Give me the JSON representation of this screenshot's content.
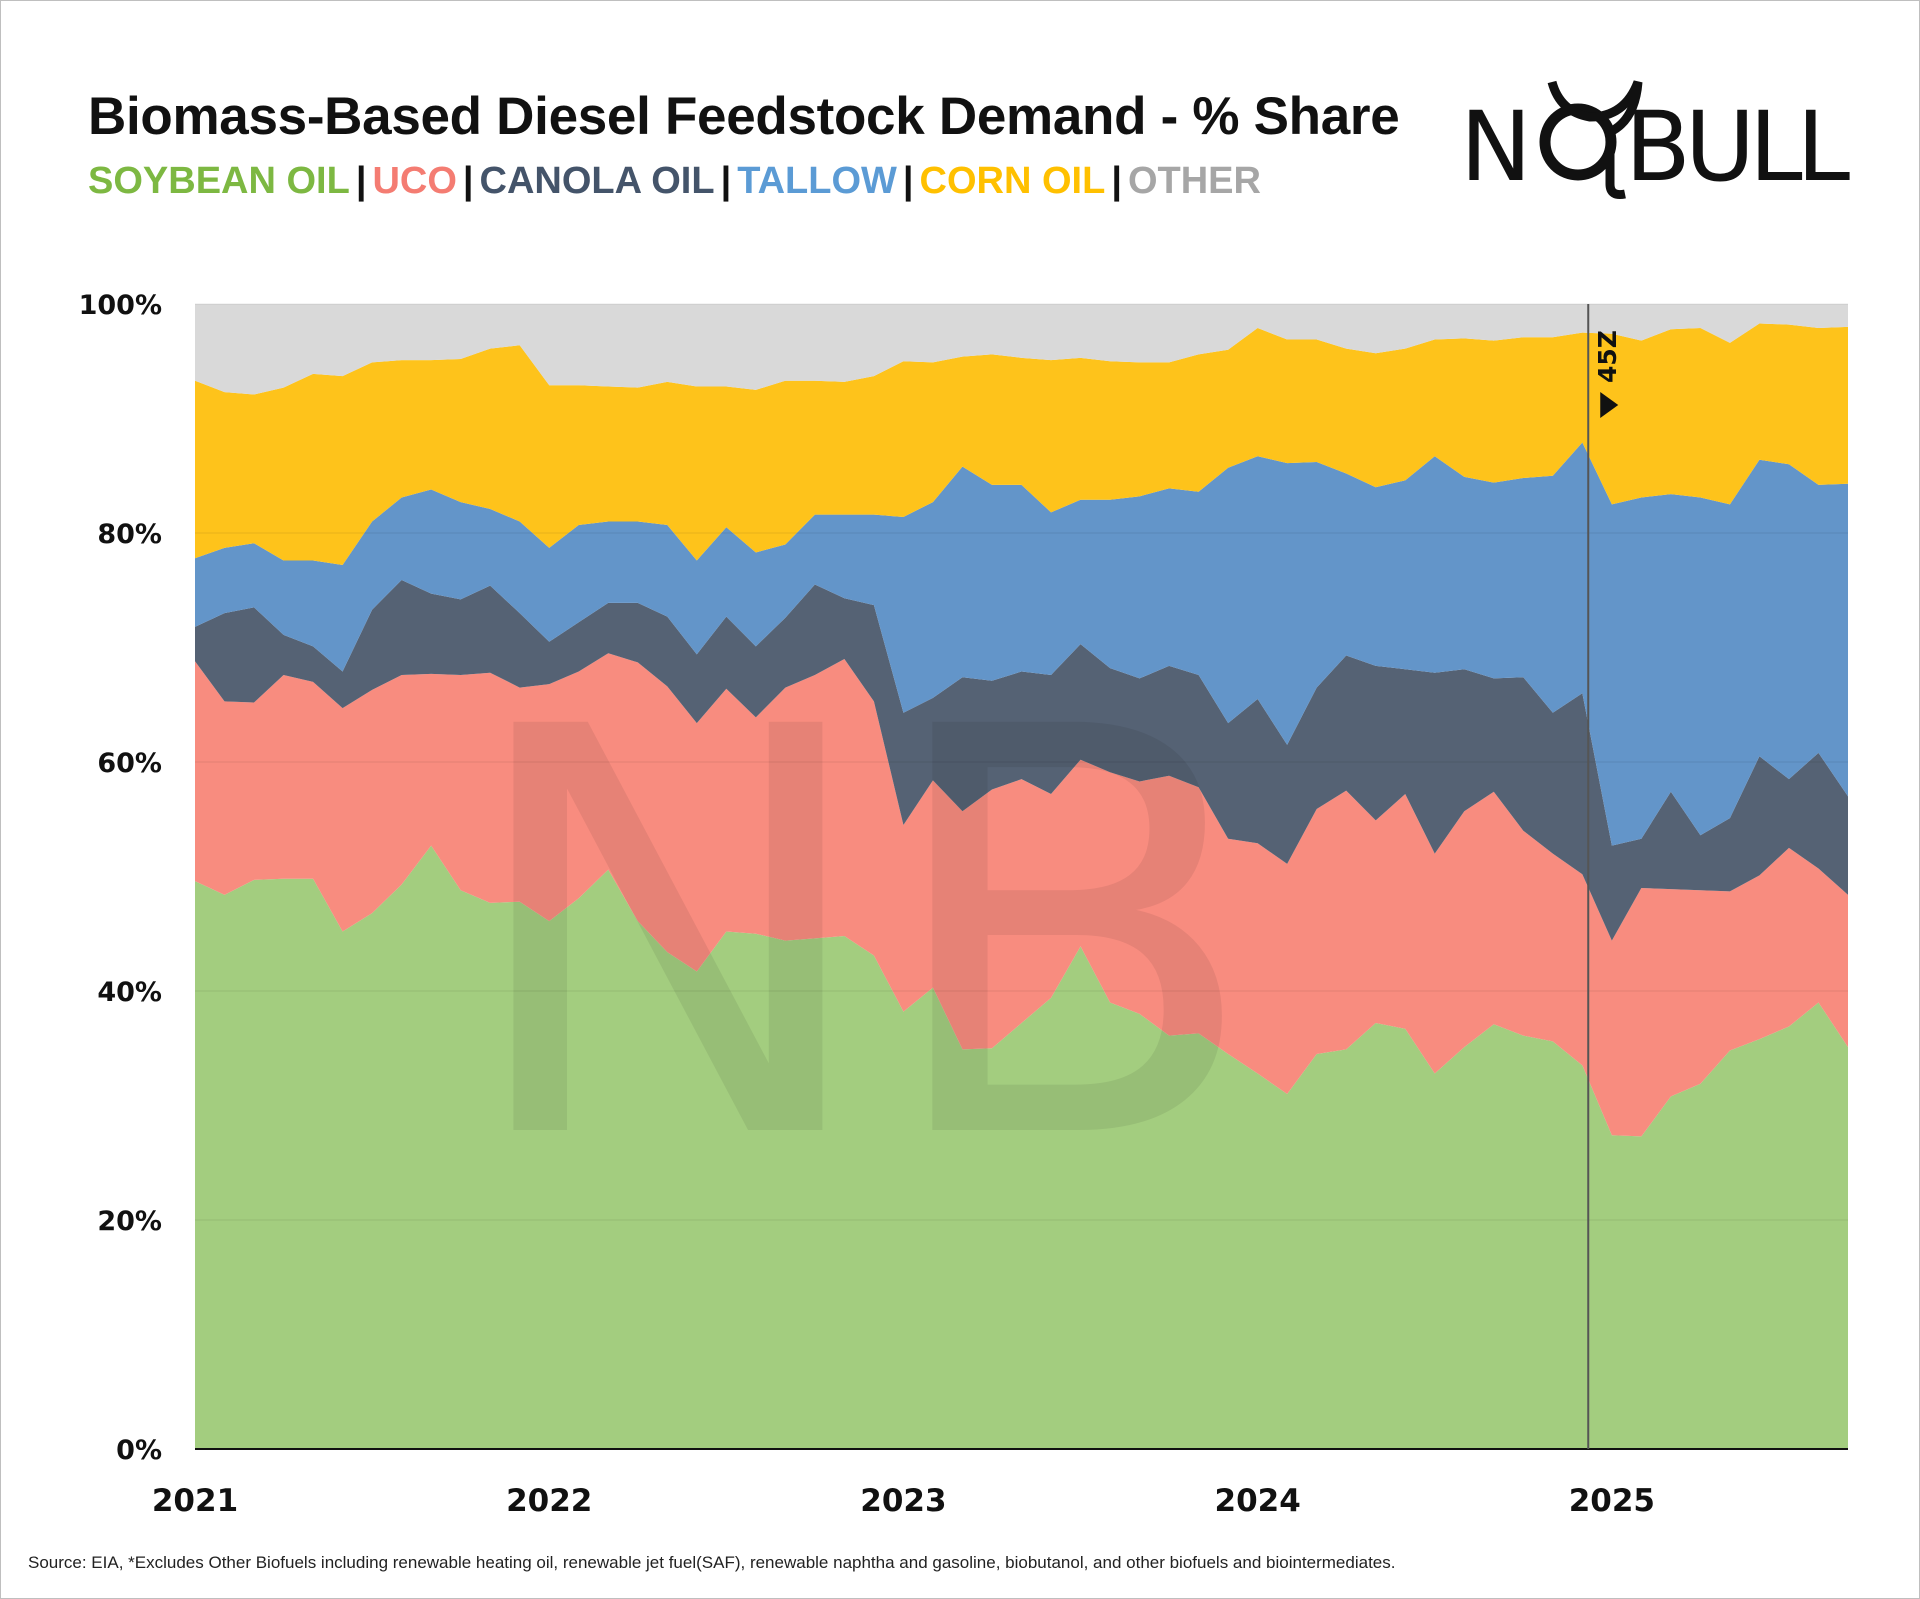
{
  "title": "Biomass-Based Diesel Feedstock Demand - % Share",
  "legend_separator": "|",
  "legend": [
    {
      "label": "SOYBEAN OIL",
      "color": "#7db842"
    },
    {
      "label": "UCO",
      "color": "#f47c72"
    },
    {
      "label": "CANOLA OIL",
      "color": "#44546a"
    },
    {
      "label": "TALLOW",
      "color": "#5b9bd5"
    },
    {
      "label": "CORN OIL",
      "color": "#ffc000"
    },
    {
      "label": "OTHER",
      "color": "#a6a6a6"
    }
  ],
  "logo": {
    "text": "NO BULL",
    "watermark": "NB"
  },
  "source": "Source: EIA, *Excludes Other Biofuels including renewable heating oil, renewable jet fuel(SAF), renewable naphtha and gasoline, biobutanol, and other biofuels and biointermediates.",
  "chart_data": {
    "type": "area",
    "stacked": true,
    "x_start": "2021-01",
    "x_end": "2025-09",
    "frequency": "monthly",
    "ylim": [
      0,
      100
    ],
    "y_ticks": [
      "0%",
      "20%",
      "40%",
      "60%",
      "80%",
      "100%"
    ],
    "x_ticks": [
      "2021",
      "2022",
      "2023",
      "2024",
      "2025"
    ],
    "grid": "horizontal",
    "annotation": {
      "label": "45Z",
      "date": "2025-01"
    },
    "series": [
      {
        "name": "SOYBEAN OIL",
        "fill": "#a3cd7f",
        "values": [
          49.6,
          48.4,
          49.7,
          49.8,
          49.8,
          45.2,
          46.8,
          49.3,
          52.7,
          48.8,
          47.7,
          47.8,
          46.1,
          48.1,
          50.6,
          46.1,
          43.4,
          41.7,
          45.2,
          45.0,
          44.4,
          44.6,
          44.8,
          43.1,
          38.2,
          40.3,
          34.9,
          35.0,
          37.2,
          39.4,
          43.9,
          39.0,
          38.0,
          36.1,
          36.3,
          34.5,
          32.8,
          31.0,
          34.5,
          34.9,
          37.2,
          36.7,
          32.8,
          35.1,
          37.1,
          36.1,
          35.6,
          33.5,
          27.4,
          27.3,
          30.8,
          31.9,
          34.8,
          35.8,
          36.9,
          39.0,
          35.1
        ]
      },
      {
        "name": "UCO",
        "fill": "#f88c7f",
        "values": [
          19.2,
          16.9,
          15.5,
          17.8,
          17.2,
          19.5,
          19.5,
          18.3,
          15.0,
          18.8,
          20.1,
          18.7,
          20.7,
          19.8,
          18.9,
          22.6,
          23.2,
          21.7,
          21.2,
          18.9,
          22.1,
          23.0,
          24.2,
          22.2,
          16.3,
          18.1,
          20.8,
          22.6,
          21.3,
          17.8,
          16.3,
          20.1,
          20.3,
          22.7,
          21.5,
          18.8,
          20.1,
          20.1,
          21.4,
          22.6,
          17.7,
          20.5,
          19.2,
          20.6,
          20.3,
          17.9,
          16.4,
          16.7,
          17.0,
          21.7,
          18.1,
          16.9,
          13.9,
          14.3,
          15.6,
          11.7,
          13.3
        ]
      },
      {
        "name": "CANOLA OIL",
        "fill": "#556274",
        "values": [
          3.0,
          7.7,
          8.3,
          3.5,
          3.1,
          3.2,
          7.0,
          8.3,
          7.0,
          6.6,
          7.6,
          6.5,
          3.7,
          4.3,
          4.4,
          5.2,
          6.1,
          6.0,
          6.3,
          6.2,
          6.1,
          7.9,
          5.3,
          8.4,
          9.8,
          7.2,
          11.7,
          9.5,
          9.4,
          10.4,
          10.1,
          9.1,
          9.0,
          9.6,
          9.8,
          10.1,
          12.6,
          10.4,
          10.6,
          11.8,
          13.5,
          10.9,
          15.8,
          12.4,
          9.9,
          13.4,
          12.3,
          15.8,
          8.3,
          4.3,
          8.5,
          4.8,
          6.4,
          10.4,
          6.0,
          10.1,
          8.6
        ]
      },
      {
        "name": "TALLOW",
        "fill": "#6395c9",
        "values": [
          6.0,
          5.7,
          5.6,
          6.5,
          7.5,
          9.3,
          7.7,
          7.2,
          9.1,
          8.5,
          6.7,
          8.0,
          8.2,
          8.5,
          7.1,
          7.1,
          8.0,
          8.2,
          7.8,
          8.2,
          6.4,
          6.1,
          7.3,
          7.9,
          17.1,
          17.1,
          18.4,
          17.1,
          16.3,
          14.2,
          12.6,
          14.7,
          15.9,
          15.5,
          16.0,
          22.3,
          21.2,
          24.6,
          19.7,
          15.9,
          15.6,
          16.5,
          18.9,
          16.8,
          17.1,
          17.4,
          20.7,
          21.9,
          29.8,
          29.8,
          26.0,
          29.5,
          27.4,
          25.9,
          27.5,
          23.4,
          27.3
        ]
      },
      {
        "name": "CORN OIL",
        "fill": "#fec31b",
        "values": [
          15.5,
          13.6,
          13.0,
          15.1,
          16.3,
          16.5,
          13.9,
          12.0,
          11.3,
          12.5,
          14.0,
          15.4,
          14.2,
          12.2,
          11.8,
          11.7,
          12.5,
          15.2,
          12.3,
          14.2,
          14.3,
          11.7,
          11.6,
          12.1,
          13.6,
          12.2,
          9.6,
          11.4,
          11.1,
          13.3,
          12.4,
          12.1,
          11.7,
          11.0,
          12.0,
          10.3,
          11.2,
          10.8,
          10.7,
          10.9,
          11.7,
          11.5,
          10.2,
          12.1,
          12.4,
          12.3,
          12.1,
          9.6,
          14.9,
          13.7,
          14.4,
          14.8,
          14.1,
          11.9,
          12.2,
          13.7,
          13.7
        ]
      },
      {
        "name": "OTHER",
        "fill": "#d9d9d9",
        "values": [
          6.7,
          7.7,
          7.9,
          7.3,
          6.1,
          6.3,
          5.1,
          4.9,
          4.9,
          4.8,
          3.9,
          3.6,
          7.1,
          7.1,
          7.2,
          7.3,
          6.8,
          7.2,
          7.2,
          7.5,
          6.7,
          6.7,
          6.8,
          6.3,
          5.0,
          5.1,
          4.6,
          4.4,
          4.7,
          4.9,
          4.7,
          5.0,
          5.1,
          5.1,
          4.4,
          4.0,
          2.1,
          3.1,
          3.1,
          3.9,
          4.3,
          3.9,
          3.1,
          3.0,
          3.2,
          2.9,
          2.9,
          2.5,
          2.6,
          3.2,
          2.2,
          2.1,
          3.4,
          1.7,
          1.8,
          2.1,
          2.0
        ]
      }
    ]
  }
}
